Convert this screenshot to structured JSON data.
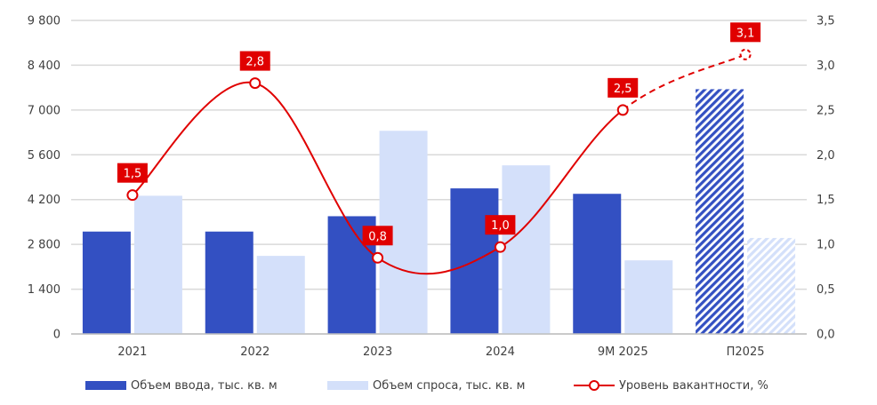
{
  "chart_data": {
    "type": "bar",
    "categories": [
      "2021",
      "2022",
      "2023",
      "2024",
      "9М 2025",
      "П2025"
    ],
    "forecast_categories": [
      "П2025"
    ],
    "y_left": {
      "ticks": [
        "9 800",
        "8 400",
        "7 000",
        "5 600",
        "4 200",
        "2 800",
        "1 400",
        "0"
      ],
      "ylim": [
        0,
        9800
      ]
    },
    "y_right": {
      "ticks": [
        "3,5",
        "3,0",
        "2,5",
        "2,0",
        "1,5",
        "1,0",
        "0,5",
        "0,0"
      ],
      "ylim": [
        0,
        3.5
      ]
    },
    "series": [
      {
        "name": "Объем ввода, тыс. кв. м",
        "type": "bar",
        "axis": "left",
        "color": "#3350c2",
        "values": [
          3200,
          3200,
          3680,
          4550,
          4380,
          7650
        ]
      },
      {
        "name": "Объем спроса, тыс. кв. м",
        "type": "bar",
        "axis": "left",
        "color": "#d4e0fa",
        "values": [
          4320,
          2440,
          6350,
          5270,
          2300,
          3000
        ]
      },
      {
        "name": "Уровень вакантности, %",
        "type": "line",
        "axis": "right",
        "color": "#e00000",
        "values": [
          1.55,
          2.8,
          0.85,
          0.97,
          2.5,
          3.12
        ],
        "labels": [
          "1,5",
          "2,8",
          "0,8",
          "1,0",
          "2,5",
          "3,1"
        ]
      }
    ],
    "grid": true,
    "legend": "bottom"
  }
}
